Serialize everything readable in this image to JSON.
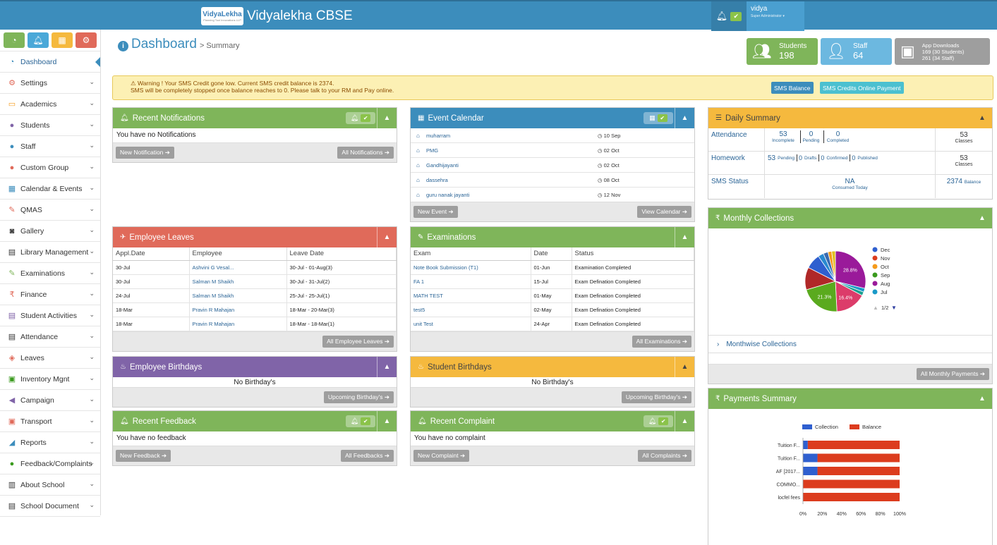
{
  "header": {
    "logo_text": "VidyaLekha",
    "logo_sub": "Planning Tool Innovations LLP",
    "app_title": "Vidyalekha CBSE",
    "user_name": "vidya",
    "user_role": "Super Administrator"
  },
  "sidebar": {
    "items": [
      {
        "label": "Dashboard",
        "icon": "dashboard-icon",
        "glyph": "◔"
      },
      {
        "label": "Settings",
        "icon": "gear-icon",
        "glyph": "⚙"
      },
      {
        "label": "Academics",
        "icon": "laptop-icon",
        "glyph": "▭"
      },
      {
        "label": "Students",
        "icon": "user-icon",
        "glyph": "●"
      },
      {
        "label": "Staff",
        "icon": "users-icon",
        "glyph": "●"
      },
      {
        "label": "Custom Group",
        "icon": "group-icon",
        "glyph": "●"
      },
      {
        "label": "Calendar & Events",
        "icon": "calendar-icon",
        "glyph": "▦"
      },
      {
        "label": "QMAS",
        "icon": "pencil-icon",
        "glyph": "✎"
      },
      {
        "label": "Gallery",
        "icon": "camera-icon",
        "glyph": "◙"
      },
      {
        "label": "Library Management",
        "icon": "book-icon",
        "glyph": "▤"
      },
      {
        "label": "Examinations",
        "icon": "pencil-icon",
        "glyph": "✎"
      },
      {
        "label": "Finance",
        "icon": "rupee-icon",
        "glyph": "₹"
      },
      {
        "label": "Student Activities",
        "icon": "book-icon",
        "glyph": "▤"
      },
      {
        "label": "Attendance",
        "icon": "attendance-icon",
        "glyph": "▤"
      },
      {
        "label": "Leaves",
        "icon": "tag-icon",
        "glyph": "◈"
      },
      {
        "label": "Inventory Mgnt",
        "icon": "inventory-icon",
        "glyph": "▣"
      },
      {
        "label": "Campaign",
        "icon": "bullhorn-icon",
        "glyph": "◀"
      },
      {
        "label": "Transport",
        "icon": "bus-icon",
        "glyph": "▣"
      },
      {
        "label": "Reports",
        "icon": "chart-icon",
        "glyph": "◢"
      },
      {
        "label": "Feedback/Complaints",
        "icon": "comments-icon",
        "glyph": "●"
      },
      {
        "label": "About School",
        "icon": "bank-icon",
        "glyph": "▥"
      },
      {
        "label": "School Document",
        "icon": "document-icon",
        "glyph": "▤"
      }
    ]
  },
  "page": {
    "title": "Dashboard",
    "subtitle": "> Summary"
  },
  "stats": {
    "students_label": "Students",
    "students_value": "198",
    "staff_label": "Staff",
    "staff_value": "64",
    "app_label": "App Downloads",
    "app_line1": "169 (30 Students)",
    "app_line2": "261 (34 Staff)"
  },
  "warning": {
    "line1": "Warning ! Your SMS Credit gone low. Current SMS credit balance is 2374.",
    "line2": "SMS will be completely stopped once balance reaches to 0. Please talk to your RM and Pay online.",
    "btn1": "SMS Balance",
    "btn2": "SMS Credits Online Payment"
  },
  "notifications": {
    "title": "Recent Notifications",
    "empty": "You have no Notifications",
    "btn_new": "New Notification ➔",
    "btn_all": "All Notifications ➔"
  },
  "events": {
    "title": "Event Calendar",
    "rows": [
      {
        "name": "muharram",
        "date": "10 Sep"
      },
      {
        "name": "PMG",
        "date": "02 Oct"
      },
      {
        "name": "Gandhijayanti",
        "date": "02 Oct"
      },
      {
        "name": "dassehra",
        "date": "08 Oct"
      },
      {
        "name": "guru nanak jayanti",
        "date": "12 Nov"
      }
    ],
    "btn_new": "New Event ➔",
    "btn_all": "View Calendar ➔"
  },
  "leaves": {
    "title": "Employee Leaves",
    "headers": [
      "Appl.Date",
      "Employee",
      "Leave Date"
    ],
    "rows": [
      [
        "30-Jul",
        "Ashvini G Vesal...",
        "30-Jul - 01-Aug(3)"
      ],
      [
        "30-Jul",
        "Salman M Shaikh",
        "30-Jul - 31-Jul(2)"
      ],
      [
        "24-Jul",
        "Salman M Shaikh",
        "25-Jul - 25-Jul(1)"
      ],
      [
        "18-Mar",
        "Pravin R Mahajan",
        "18-Mar - 20-Mar(3)"
      ],
      [
        "18-Mar",
        "Pravin R Mahajan",
        "18-Mar - 18-Mar(1)"
      ]
    ],
    "btn_all": "All Employee Leaves ➔"
  },
  "exams": {
    "title": "Examinations",
    "headers": [
      "Exam",
      "Date",
      "Status"
    ],
    "rows": [
      [
        "Note Book Submission (T1)",
        "01-Jun",
        "Examination Completed"
      ],
      [
        "FA 1",
        "15-Jul",
        "Exam Defination Completed"
      ],
      [
        "MATH TEST",
        "01-May",
        "Exam Defination Completed"
      ],
      [
        "test5",
        "02-May",
        "Exam Defination Completed"
      ],
      [
        "unit Test",
        "24-Apr",
        "Exam Defination Completed"
      ]
    ],
    "btn_all": "All Examinations ➔"
  },
  "emp_bday": {
    "title": "Employee Birthdays",
    "empty": "No Birthday's",
    "btn": "Upcoming Birthday's ➔"
  },
  "stu_bday": {
    "title": "Student Birthdays",
    "empty": "No Birthday's",
    "btn": "Upcoming Birthday's ➔"
  },
  "feedback": {
    "title": "Recent Feedback",
    "empty": "You have no feedback",
    "btn_new": "New Feedback ➔",
    "btn_all": "All Feedbacks ➔"
  },
  "complaint": {
    "title": "Recent Complaint",
    "empty": "You have no complaint",
    "btn_new": "New Complaint ➔",
    "btn_all": "All Complaints ➔"
  },
  "daily": {
    "title": "Daily Summary",
    "att_label": "Attendance",
    "att_incomplete": "53",
    "att_incomplete_l": "Incomplete",
    "att_pending": "0",
    "att_pending_l": "Pending",
    "att_completed": "0",
    "att_completed_l": "Completed",
    "att_classes": "53",
    "att_classes_l": "Classes",
    "hw_label": "Homework",
    "hw_pending": "53",
    "hw_pending_l": "Pending",
    "hw_drafts": "0",
    "hw_drafts_l": "Drafts",
    "hw_confirmed": "0",
    "hw_confirmed_l": "Confirmed",
    "hw_published": "0",
    "hw_published_l": "Published",
    "hw_classes": "53",
    "hw_classes_l": "Classes",
    "sms_label": "SMS Status",
    "sms_value": "NA",
    "sms_value_l": "Consumed Today",
    "sms_balance": "2374",
    "sms_balance_l": "Balance"
  },
  "monthly": {
    "title": "Monthly Collections",
    "monthwise": "Monthwise Collections",
    "btn_all": "All Monthly Payments ➔",
    "pager": "1/2"
  },
  "payments": {
    "title": "Payments Summary"
  },
  "chart_data": [
    {
      "type": "pie",
      "legend": [
        "Dec",
        "Nov",
        "Oct",
        "Sep",
        "Aug",
        "Jul"
      ],
      "legend_colors": [
        "#2f5fcf",
        "#dc3c1e",
        "#f59a1a",
        "#3a9a1e",
        "#9a1a9a",
        "#1a9ac8"
      ],
      "slices": [
        {
          "label": "28.8%",
          "value": 28.8,
          "color": "#9a1a9a"
        },
        {
          "label": "",
          "value": 2,
          "color": "#1a9ac8"
        },
        {
          "label": "",
          "value": 2,
          "color": "#1aa090"
        },
        {
          "label": "16.4%",
          "value": 16.4,
          "color": "#dc3c6a"
        },
        {
          "label": "21.3%",
          "value": 21.3,
          "color": "#5aaa1e"
        },
        {
          "label": "",
          "value": 12,
          "color": "#b02828"
        },
        {
          "label": "",
          "value": 8,
          "color": "#2f5fcf"
        },
        {
          "label": "",
          "value": 3,
          "color": "#2a8ad0"
        },
        {
          "label": "",
          "value": 2.5,
          "color": "#3a6ab0"
        },
        {
          "label": "",
          "value": 2,
          "color": "#f59a1a"
        },
        {
          "label": "",
          "value": 2,
          "color": "#e0c020"
        }
      ]
    },
    {
      "type": "bar",
      "orientation": "horizontal",
      "stacked": "percent",
      "categories": [
        "Tuition F...",
        "Tuition F...",
        "AF [2017...",
        "COMMO...",
        "locfel fees"
      ],
      "series": [
        {
          "name": "Collection",
          "color": "#2f5fcf",
          "values": [
            5,
            15,
            15,
            0,
            0
          ]
        },
        {
          "name": "Balance",
          "color": "#dc3c1e",
          "values": [
            95,
            85,
            85,
            100,
            100
          ]
        }
      ],
      "xticks": [
        "0%",
        "20%",
        "40%",
        "60%",
        "80%",
        "100%"
      ]
    }
  ]
}
